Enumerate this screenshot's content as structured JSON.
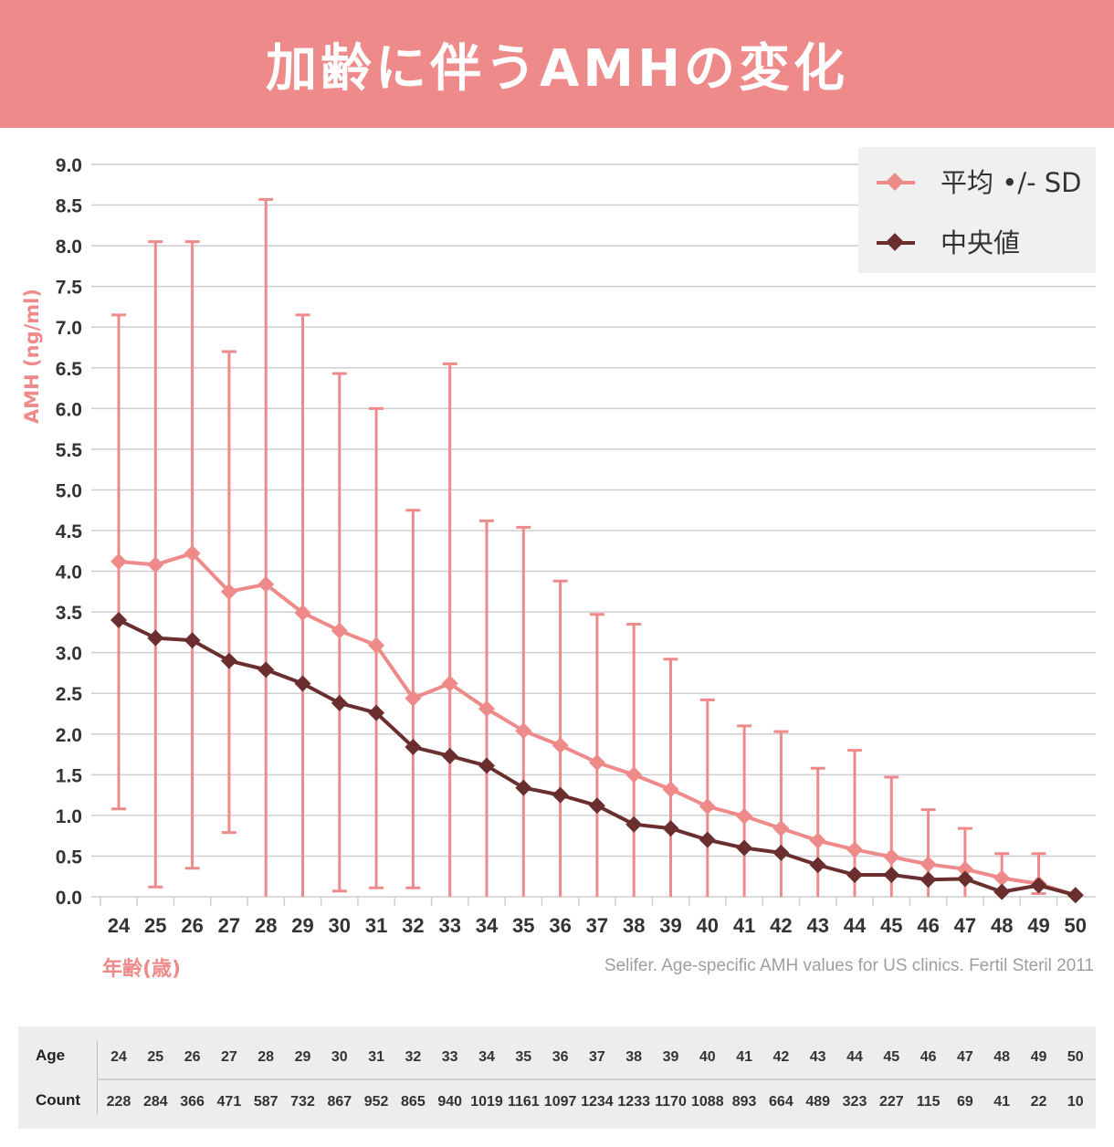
{
  "title": "加齢に伴うAMHの変化",
  "source": "Selifer. Age-specific AMH values for US clinics. Fertil Steril 2011",
  "colors": {
    "mean": "#ef8a8a",
    "median": "#6b2e2e",
    "banner": "#ef8a8a",
    "grid": "#cfcfcf"
  },
  "chart_data": {
    "type": "line",
    "title": "加齢に伴うAMHの変化",
    "xlabel": "年齢(歳)",
    "ylabel": "AMH (ng/ml)",
    "ylim": [
      0,
      9
    ],
    "yticks": [
      "0.0",
      "0.5",
      "1.0",
      "1.5",
      "2.0",
      "2.5",
      "3.0",
      "3.5",
      "4.0",
      "4.5",
      "5.0",
      "5.5",
      "6.0",
      "6.5",
      "7.0",
      "7.5",
      "8.0",
      "8.5",
      "9.0"
    ],
    "categories": [
      "24",
      "25",
      "26",
      "27",
      "28",
      "29",
      "30",
      "31",
      "32",
      "33",
      "34",
      "35",
      "36",
      "37",
      "38",
      "39",
      "40",
      "41",
      "42",
      "43",
      "44",
      "45",
      "46",
      "47",
      "48",
      "49",
      "50"
    ],
    "grid": true,
    "legend_position": "top-right",
    "series": [
      {
        "name": "平均 •/- SD",
        "values": [
          4.12,
          4.08,
          4.22,
          3.75,
          3.84,
          3.49,
          3.27,
          3.09,
          2.44,
          2.62,
          2.31,
          2.04,
          1.86,
          1.65,
          1.5,
          1.32,
          1.11,
          0.99,
          0.84,
          0.69,
          0.58,
          0.49,
          0.4,
          0.34,
          0.23,
          0.16,
          0.02
        ],
        "error_upper": [
          7.15,
          8.05,
          8.05,
          6.7,
          8.57,
          7.15,
          6.43,
          6.0,
          4.75,
          6.55,
          4.62,
          4.54,
          3.88,
          3.47,
          3.35,
          2.92,
          2.42,
          2.1,
          2.03,
          1.58,
          1.8,
          1.47,
          1.07,
          0.84,
          0.53,
          0.53,
          0.02
        ],
        "error_lower": [
          1.08,
          0.12,
          0.35,
          0.79,
          0.0,
          0.0,
          0.07,
          0.11,
          0.11,
          0.0,
          0.0,
          0.0,
          0.0,
          0.0,
          0.0,
          0.0,
          0.0,
          0.0,
          0.0,
          0.0,
          0.0,
          0.0,
          0.0,
          0.0,
          0.0,
          0.04,
          0.02
        ]
      },
      {
        "name": "中央値",
        "values": [
          3.4,
          3.18,
          3.15,
          2.9,
          2.79,
          2.62,
          2.38,
          2.26,
          1.84,
          1.73,
          1.61,
          1.34,
          1.25,
          1.12,
          0.89,
          0.84,
          0.7,
          0.6,
          0.54,
          0.39,
          0.27,
          0.27,
          0.21,
          0.22,
          0.06,
          0.14,
          0.02
        ]
      }
    ]
  },
  "table": {
    "age_label": "Age",
    "count_label": "Count",
    "ages": [
      "24",
      "25",
      "26",
      "27",
      "28",
      "29",
      "30",
      "31",
      "32",
      "33",
      "34",
      "35",
      "36",
      "37",
      "38",
      "39",
      "40",
      "41",
      "42",
      "43",
      "44",
      "45",
      "46",
      "47",
      "48",
      "49",
      "50"
    ],
    "counts": [
      "228",
      "284",
      "366",
      "471",
      "587",
      "732",
      "867",
      "952",
      "865",
      "940",
      "1019",
      "1161",
      "1097",
      "1234",
      "1233",
      "1170",
      "1088",
      "893",
      "664",
      "489",
      "323",
      "227",
      "115",
      "69",
      "41",
      "22",
      "10"
    ]
  }
}
